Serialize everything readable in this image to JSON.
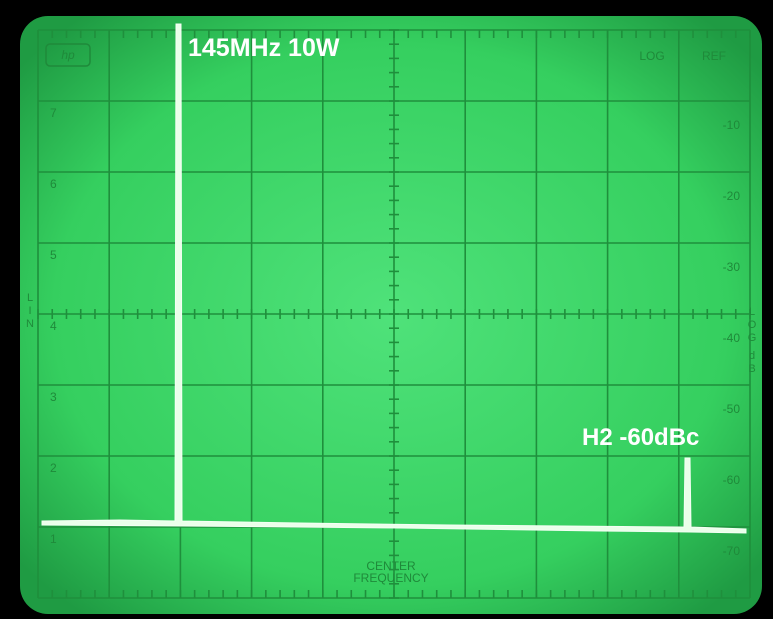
{
  "logo": "hp",
  "top_right": {
    "log": "LOG",
    "ref": "REF"
  },
  "log_scale": [
    "-10",
    "-20",
    "-30",
    "-40",
    "-50",
    "-60",
    "-70"
  ],
  "lin_scale": [
    "7",
    "6",
    "5",
    "4",
    "3",
    "2",
    "1"
  ],
  "lin_axis": "LIN",
  "log_axis": {
    "unit": "LOG",
    "db": "dB"
  },
  "center": {
    "line1": "CENTER",
    "line2": "FREQUENCY"
  },
  "annotations": {
    "carrier": "145MHz 10W",
    "harmonic": "H2 -60dBc"
  }
}
